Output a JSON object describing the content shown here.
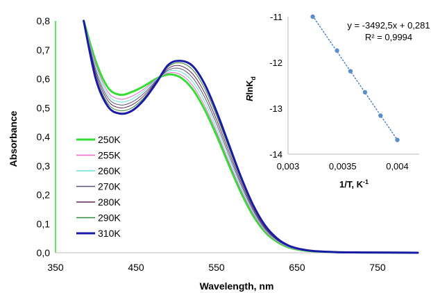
{
  "chart_data": [
    {
      "type": "line",
      "xlabel": "Wavelength, nm",
      "ylabel": "Absorbance",
      "xlim": [
        350,
        800
      ],
      "ylim": [
        0,
        0.8
      ],
      "x_ticks": [
        "350",
        "450",
        "550",
        "650",
        "750"
      ],
      "y_ticks": [
        "0,0",
        "0,1",
        "0,2",
        "0,3",
        "0,4",
        "0,5",
        "0,6",
        "0,7",
        "0,8"
      ],
      "grid": false,
      "legend_position": "left",
      "x": [
        385,
        400,
        415,
        430,
        445,
        460,
        475,
        490,
        505,
        520,
        535,
        550,
        565,
        580,
        595,
        610,
        625,
        640,
        655,
        670,
        700,
        730,
        800
      ],
      "series": [
        {
          "name": "250K",
          "color": "#33dd33",
          "width": 3,
          "values": [
            0.8,
            0.66,
            0.57,
            0.545,
            0.555,
            0.575,
            0.6,
            0.615,
            0.605,
            0.565,
            0.495,
            0.405,
            0.305,
            0.21,
            0.13,
            0.072,
            0.038,
            0.018,
            0.009,
            0.005,
            0.002,
            0.001,
            0.0
          ]
        },
        {
          "name": "255K",
          "color": "#ee66cc",
          "width": 1,
          "values": [
            0.8,
            0.65,
            0.555,
            0.53,
            0.54,
            0.565,
            0.598,
            0.62,
            0.615,
            0.578,
            0.508,
            0.418,
            0.316,
            0.219,
            0.137,
            0.076,
            0.04,
            0.019,
            0.009,
            0.005,
            0.002,
            0.001,
            0.0
          ]
        },
        {
          "name": "260K",
          "color": "#66e0e0",
          "width": 1,
          "values": [
            0.8,
            0.64,
            0.545,
            0.52,
            0.53,
            0.558,
            0.596,
            0.625,
            0.625,
            0.591,
            0.523,
            0.431,
            0.328,
            0.228,
            0.143,
            0.08,
            0.042,
            0.02,
            0.01,
            0.005,
            0.002,
            0.001,
            0.0
          ]
        },
        {
          "name": "270K",
          "color": "#555577",
          "width": 1,
          "values": [
            0.8,
            0.63,
            0.535,
            0.51,
            0.52,
            0.55,
            0.593,
            0.63,
            0.635,
            0.605,
            0.538,
            0.445,
            0.34,
            0.237,
            0.149,
            0.083,
            0.044,
            0.021,
            0.01,
            0.005,
            0.002,
            0.001,
            0.0
          ]
        },
        {
          "name": "280K",
          "color": "#662255",
          "width": 1,
          "values": [
            0.8,
            0.62,
            0.525,
            0.5,
            0.51,
            0.542,
            0.59,
            0.636,
            0.645,
            0.618,
            0.553,
            0.459,
            0.352,
            0.246,
            0.155,
            0.087,
            0.046,
            0.022,
            0.011,
            0.006,
            0.002,
            0.001,
            0.0
          ]
        },
        {
          "name": "290K",
          "color": "#338833",
          "width": 1,
          "values": [
            0.8,
            0.61,
            0.515,
            0.49,
            0.5,
            0.535,
            0.588,
            0.642,
            0.655,
            0.632,
            0.568,
            0.473,
            0.364,
            0.255,
            0.161,
            0.091,
            0.048,
            0.023,
            0.011,
            0.006,
            0.002,
            0.001,
            0.0
          ]
        },
        {
          "name": "310K",
          "color": "#1a1aa6",
          "width": 3,
          "values": [
            0.8,
            0.6,
            0.505,
            0.48,
            0.49,
            0.528,
            0.585,
            0.648,
            0.662,
            0.645,
            0.583,
            0.487,
            0.376,
            0.264,
            0.167,
            0.095,
            0.05,
            0.024,
            0.012,
            0.006,
            0.002,
            0.001,
            0.0
          ]
        }
      ]
    },
    {
      "type": "scatter",
      "xlabel": "1/T, K",
      "xlabel_superscript": "-1",
      "ylabel_prefix": "R",
      "ylabel_main": "lnK",
      "ylabel_subscript": "d",
      "xlim": [
        0.003,
        0.0042
      ],
      "ylim": [
        -14,
        -11
      ],
      "x_ticks": [
        "0,003",
        "0,0035",
        "0,004"
      ],
      "y_ticks": [
        "-11",
        "-12",
        "-13",
        "-14"
      ],
      "grid": false,
      "equation": "y = -3492,5x + 0,281",
      "r_squared": "R² = 0,9994",
      "trendline": {
        "color": "#4a86c8",
        "style": "dotted",
        "x_range": [
          0.003226,
          0.004
        ]
      },
      "series": [
        {
          "color": "#5b8ec9",
          "x": [
            0.003226,
            0.003448,
            0.003571,
            0.003704,
            0.003846,
            0.004
          ],
          "y": [
            -11.0,
            -11.74,
            -12.19,
            -12.65,
            -13.16,
            -13.69
          ]
        }
      ]
    }
  ]
}
